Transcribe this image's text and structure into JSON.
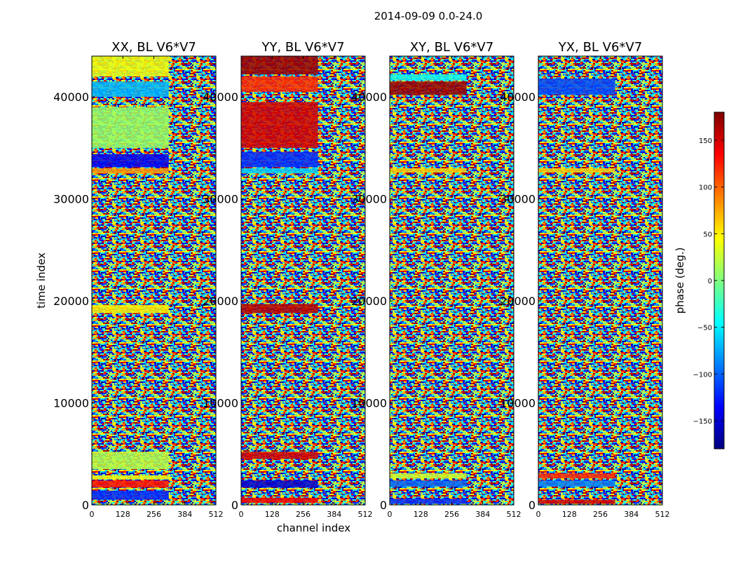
{
  "figure": {
    "suptitle": "2014-09-09 0.0-24.0"
  },
  "chart_data": [
    {
      "type": "heatmap",
      "title": "XX, BL V6*V7",
      "xlabel": "",
      "ylabel": "time index",
      "xlim": [
        0,
        512
      ],
      "ylim": [
        0,
        44000
      ],
      "xticks": [
        0,
        128,
        256,
        384,
        512
      ],
      "yticks": [
        0,
        10000,
        20000,
        30000,
        40000
      ],
      "value_label": "phase (deg.)",
      "bands": [
        {
          "from": 500,
          "to": 1400,
          "phase": -120
        },
        {
          "from": 1700,
          "to": 2400,
          "phase": 130
        },
        {
          "from": 2500,
          "to": 2900,
          "phase": 40
        },
        {
          "from": 3500,
          "to": 5200,
          "phase": 20
        },
        {
          "from": 18800,
          "to": 19600,
          "phase": 50
        },
        {
          "from": 32500,
          "to": 33000,
          "phase": 80
        },
        {
          "from": 33100,
          "to": 34400,
          "phase": -140
        },
        {
          "from": 35000,
          "to": 39000,
          "phase": 10
        },
        {
          "from": 40000,
          "to": 41500,
          "phase": -70
        },
        {
          "from": 42000,
          "to": 44000,
          "phase": 40
        }
      ]
    },
    {
      "type": "heatmap",
      "title": "YY, BL V6*V7",
      "xlabel": "channel index",
      "ylabel": "",
      "xlim": [
        0,
        512
      ],
      "ylim": [
        0,
        44000
      ],
      "xticks": [
        0,
        128,
        256,
        384,
        512
      ],
      "yticks": [
        0,
        10000,
        20000,
        30000,
        40000
      ],
      "value_label": "phase (deg.)",
      "bands": [
        {
          "from": 200,
          "to": 700,
          "phase": 140
        },
        {
          "from": 1700,
          "to": 2400,
          "phase": -150
        },
        {
          "from": 4500,
          "to": 5200,
          "phase": 150
        },
        {
          "from": 18800,
          "to": 19700,
          "phase": 160
        },
        {
          "from": 32500,
          "to": 33000,
          "phase": -60
        },
        {
          "from": 33100,
          "to": 34600,
          "phase": -120
        },
        {
          "from": 35000,
          "to": 39500,
          "phase": 150
        },
        {
          "from": 40500,
          "to": 42000,
          "phase": 120
        },
        {
          "from": 42200,
          "to": 44000,
          "phase": 170
        }
      ]
    },
    {
      "type": "heatmap",
      "title": "XY, BL V6*V7",
      "xlabel": "",
      "ylabel": "",
      "xlim": [
        0,
        512
      ],
      "ylim": [
        0,
        44000
      ],
      "xticks": [
        0,
        128,
        256,
        384,
        512
      ],
      "yticks": [
        0,
        10000,
        20000,
        30000,
        40000
      ],
      "value_label": "phase (deg.)",
      "bands": [
        {
          "from": 100,
          "to": 600,
          "phase": -120
        },
        {
          "from": 1800,
          "to": 2400,
          "phase": -100
        },
        {
          "from": 2600,
          "to": 3100,
          "phase": 30
        },
        {
          "from": 32600,
          "to": 33000,
          "phase": 60
        },
        {
          "from": 40200,
          "to": 41500,
          "phase": 170
        },
        {
          "from": 41600,
          "to": 42200,
          "phase": -40
        }
      ]
    },
    {
      "type": "heatmap",
      "title": "YX, BL V6*V7",
      "xlabel": "",
      "ylabel": "",
      "xlim": [
        0,
        512
      ],
      "ylim": [
        0,
        44000
      ],
      "xticks": [
        0,
        128,
        256,
        384,
        512
      ],
      "yticks": [
        0,
        10000,
        20000,
        30000,
        40000
      ],
      "value_label": "phase (deg.)",
      "bands": [
        {
          "from": 100,
          "to": 500,
          "phase": 150
        },
        {
          "from": 1800,
          "to": 2400,
          "phase": -90
        },
        {
          "from": 2600,
          "to": 3100,
          "phase": 120
        },
        {
          "from": 32600,
          "to": 33000,
          "phase": 60
        },
        {
          "from": 40200,
          "to": 41800,
          "phase": -110
        }
      ]
    }
  ],
  "colorbar": {
    "label": "phase (deg.)",
    "range": [
      -180,
      180
    ],
    "ticks": [
      -150,
      -100,
      -50,
      0,
      50,
      100,
      150
    ],
    "tick_labels": [
      "−150",
      "−100",
      "−50",
      "0",
      "50",
      "100",
      "150"
    ],
    "colormap": "jet",
    "stops": [
      "#00007f",
      "#0000ff",
      "#007fff",
      "#00ffff",
      "#7fff7f",
      "#ffff00",
      "#ff7f00",
      "#ff0000",
      "#7f0000"
    ]
  }
}
